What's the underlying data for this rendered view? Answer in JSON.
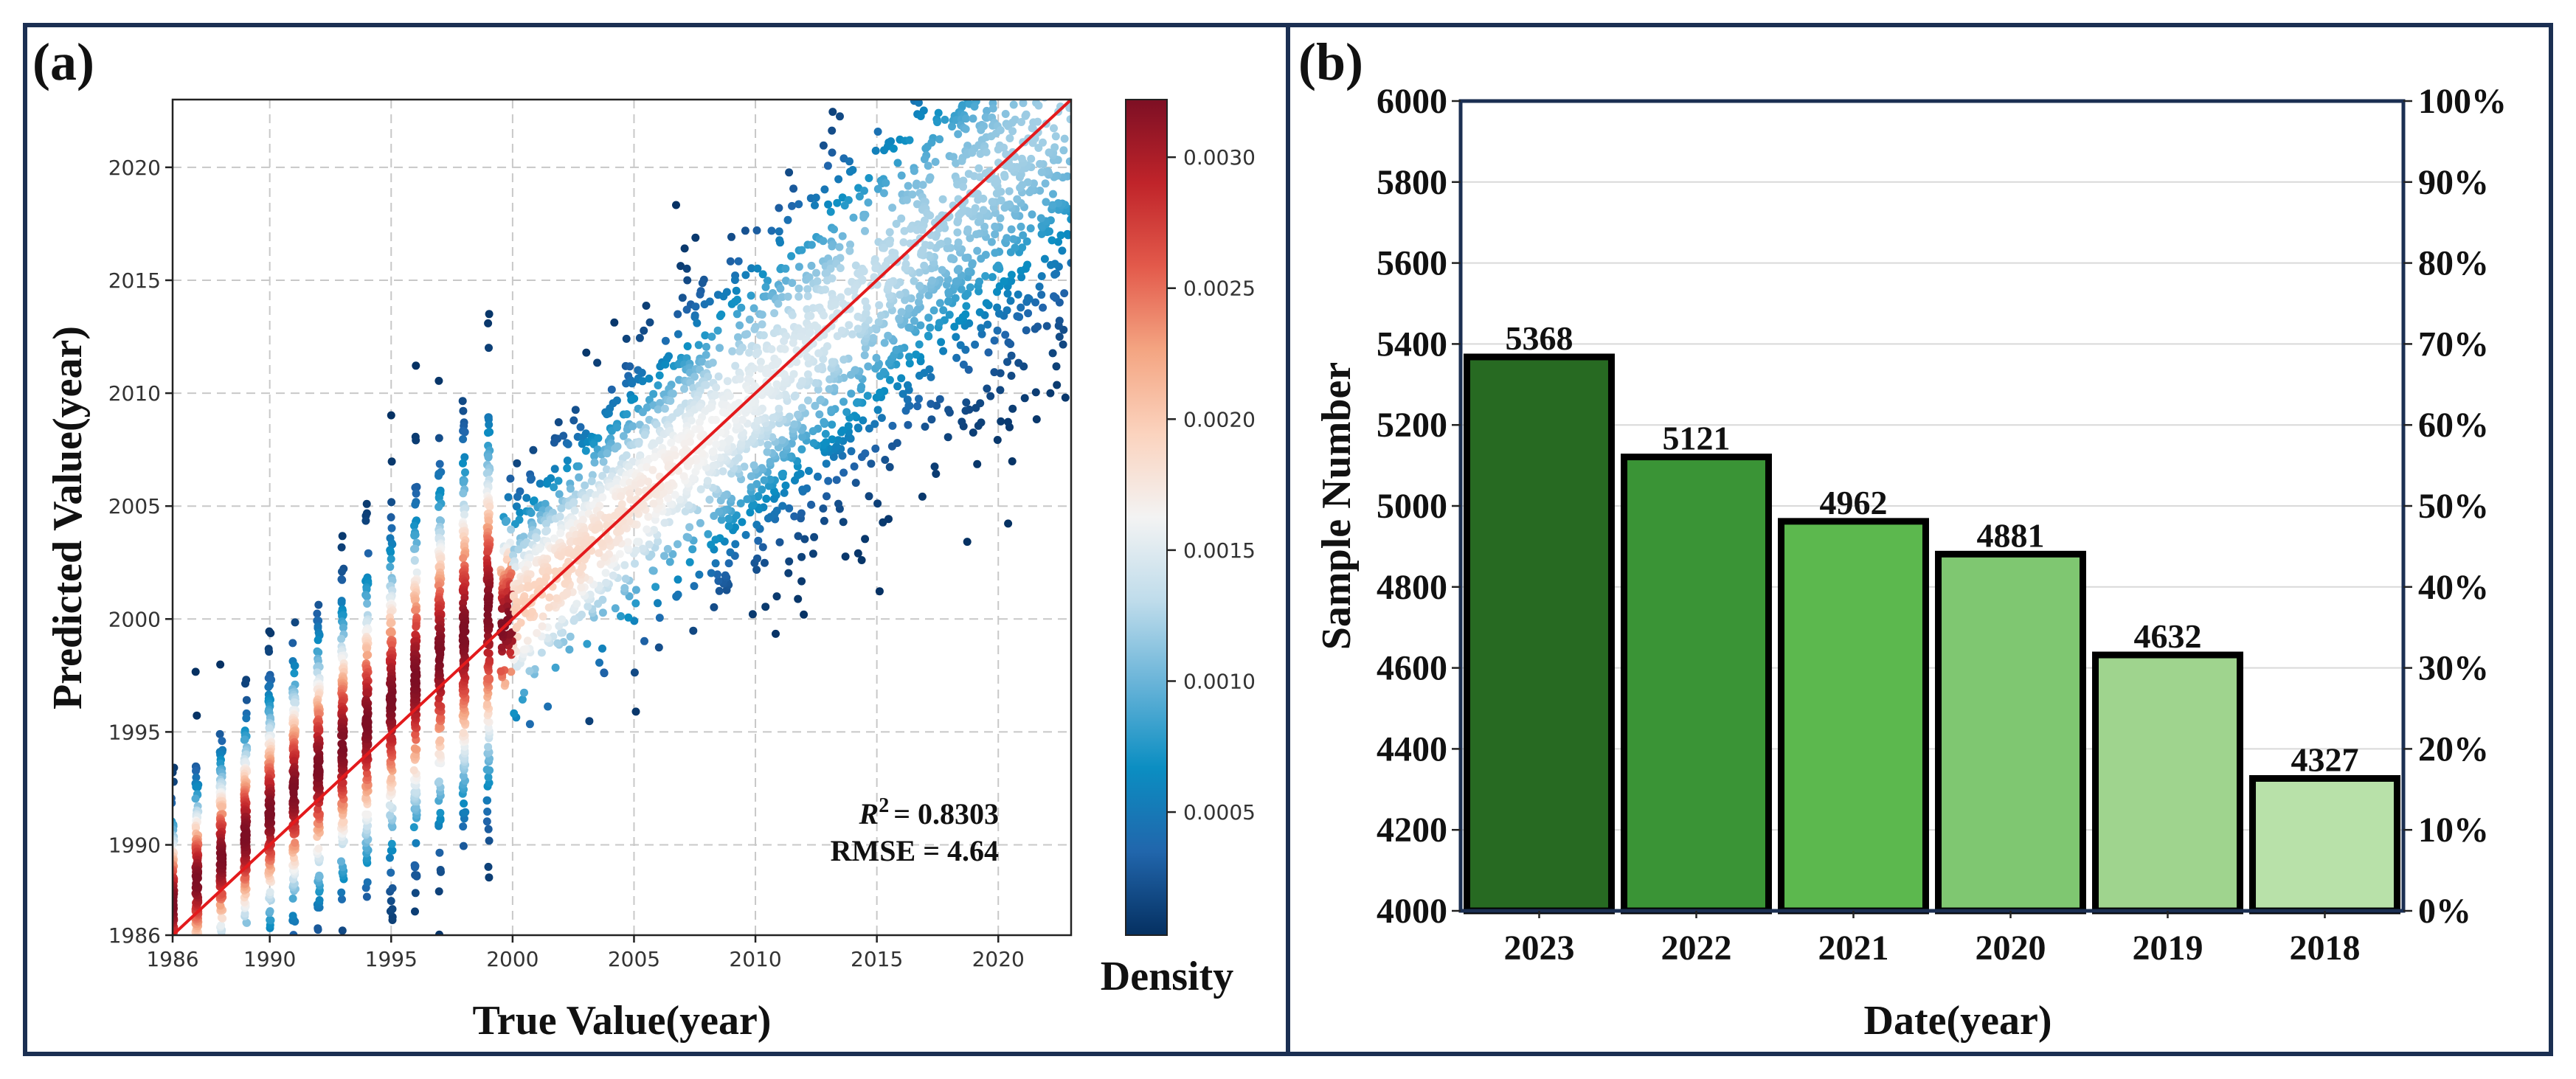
{
  "panel_a": {
    "label": "(a)",
    "stats": {
      "r2_label": "R",
      "r2_value": "= 0.8303",
      "rmse": "RMSE = 4.64"
    },
    "colorbar": {
      "label": "Density",
      "ticks": [
        "0.0005",
        "0.0010",
        "0.0015",
        "0.0020",
        "0.0025",
        "0.0030"
      ],
      "tick_values": [
        0.0005,
        0.001,
        0.0015,
        0.002,
        0.0025,
        0.003
      ],
      "range": [
        3e-05,
        0.00322
      ],
      "colors": [
        "#053061",
        "#2166ac",
        "#0b8ec2",
        "#67b3d8",
        "#bfdceb",
        "#f3f3f3",
        "#fbd3be",
        "#f4a582",
        "#e35a4b",
        "#c0242a",
        "#7d0f24"
      ]
    },
    "line_color": "#e31a1c"
  },
  "panel_b": {
    "label": "(b)",
    "right_ticks": [
      "0%",
      "10%",
      "20%",
      "30%",
      "40%",
      "50%",
      "60%",
      "70%",
      "80%",
      "90%",
      "100%"
    ],
    "frame_color": "#1b2f52"
  },
  "chart_data": [
    {
      "type": "scatter",
      "title": "",
      "xlabel": "True Value(year)",
      "ylabel": "Predicted Value(year)",
      "xlim": [
        1986,
        2023
      ],
      "ylim": [
        1986,
        2023
      ],
      "xticks": [
        1986,
        1990,
        1995,
        2000,
        2005,
        2010,
        2015,
        2020
      ],
      "yticks": [
        1986,
        1990,
        1995,
        2000,
        2005,
        2010,
        2015,
        2020
      ],
      "xtick_labels": [
        "1986",
        "1990",
        "1995",
        "2000",
        "2005",
        "2010",
        "2015",
        "2020"
      ],
      "ytick_labels": [
        "1986",
        "1990",
        "1995",
        "2000",
        "2005",
        "2010",
        "2015",
        "2020"
      ],
      "reference_line": {
        "from": [
          1986,
          1986
        ],
        "to": [
          2023,
          2023
        ]
      },
      "r2": 0.8303,
      "rmse": 4.64,
      "colorbar_label": "Density"
    },
    {
      "type": "bar",
      "title": "",
      "xlabel": "Date(year)",
      "ylabel": "Sample Number",
      "categories": [
        "2023",
        "2022",
        "2021",
        "2020",
        "2019",
        "2018"
      ],
      "values": [
        5368,
        5121,
        4962,
        4881,
        4632,
        4327
      ],
      "value_labels": [
        "5368",
        "5121",
        "4962",
        "4881",
        "4632",
        "4327"
      ],
      "colors": [
        "#276a22",
        "#3a9436",
        "#5cb84e",
        "#7fc771",
        "#9fd48e",
        "#b8e1a9"
      ],
      "ylim": [
        4000,
        6000
      ],
      "yticks": [
        4000,
        4200,
        4400,
        4600,
        4800,
        5000,
        5200,
        5400,
        5600,
        5800,
        6000
      ],
      "ytick_labels": [
        "4000",
        "4200",
        "4400",
        "4600",
        "4800",
        "5000",
        "5200",
        "5400",
        "5600",
        "5800",
        "6000"
      ],
      "secondary_ylim": [
        0,
        100
      ],
      "grid": "horizontal"
    }
  ]
}
